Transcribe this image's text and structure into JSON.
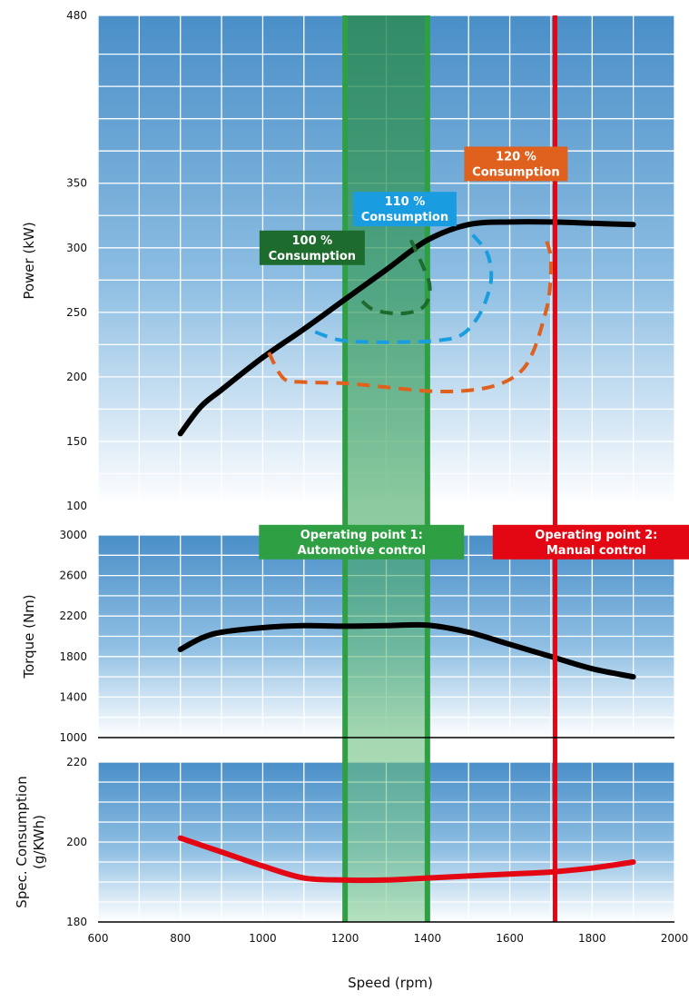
{
  "chart_data": {
    "type": "line",
    "x_axis": {
      "label": "Speed (rpm)",
      "range": [
        600,
        2000
      ],
      "ticks": [
        600,
        800,
        1000,
        1200,
        1400,
        1600,
        1800,
        2000
      ],
      "grid_step": 100
    },
    "panels": [
      {
        "id": "power",
        "ylabel": "Power (kW)",
        "ylim": [
          100,
          480
        ],
        "yticks": [
          100,
          150,
          200,
          250,
          300,
          350,
          480
        ],
        "grid_values": [
          100,
          125,
          150,
          175,
          200,
          225,
          250,
          275,
          300,
          325,
          350,
          375,
          400,
          425,
          450,
          480
        ],
        "series": [
          {
            "role": "power-curve",
            "style": "solid",
            "color": "#000000",
            "x": [
              800,
              850,
              900,
              1000,
              1100,
              1200,
              1300,
              1400,
              1500,
              1600,
              1700,
              1800,
              1900
            ],
            "y": [
              156,
              177,
              190,
              215,
              237,
              260,
              283,
              306,
              318,
              320,
              320,
              319,
              318
            ]
          },
          {
            "role": "consumption-contour-100",
            "style": "dashed",
            "color": "#1e6b2e",
            "closed": false,
            "x": [
              1360,
              1390,
              1405,
              1402,
              1380,
              1330,
              1270,
              1240
            ],
            "y": [
              306,
              285,
              272,
              260,
              252,
              249,
              252,
              259
            ]
          },
          {
            "role": "consumption-contour-110",
            "style": "dashed",
            "color": "#1a9de0",
            "closed": false,
            "x": [
              1510,
              1545,
              1555,
              1545,
              1520,
              1480,
              1420,
              1350,
              1250,
              1180,
              1110
            ],
            "y": [
              310,
              296,
              278,
              262,
              245,
              232,
              228,
              227,
              227,
              229,
              237
            ]
          },
          {
            "role": "consumption-contour-120",
            "style": "dashed",
            "color": "#e0601e",
            "closed": false,
            "x": [
              1690,
              1700,
              1695,
              1680,
              1660,
              1635,
              1600,
              1550,
              1480,
              1400,
              1300,
              1200,
              1100,
              1050,
              1010
            ],
            "y": [
              305,
              290,
              262,
              242,
              222,
              207,
              198,
              192,
              189,
              189,
              192,
              195,
              196,
              199,
              222
            ]
          }
        ]
      },
      {
        "id": "torque",
        "ylabel": "Torque (Nm)",
        "ylim": [
          1000,
          3000
        ],
        "yticks": [
          1000,
          1400,
          1800,
          2200,
          2600,
          3000
        ],
        "grid_values": [
          1000,
          1200,
          1400,
          1600,
          1800,
          2000,
          2200,
          2400,
          2600,
          2800,
          3000
        ],
        "series": [
          {
            "role": "torque-curve",
            "style": "solid",
            "color": "#000000",
            "x": [
              800,
              850,
              900,
              1000,
              1100,
              1200,
              1300,
              1400,
              1500,
              1600,
              1700,
              1800,
              1900
            ],
            "y": [
              1870,
              1980,
              2040,
              2085,
              2105,
              2100,
              2105,
              2110,
              2040,
              1920,
              1800,
              1680,
              1600
            ]
          }
        ]
      },
      {
        "id": "consumption",
        "ylabel_lines": [
          "Spec. Consumption",
          "(g/KWh)"
        ],
        "ylim": [
          180,
          220
        ],
        "yticks": [
          180,
          200,
          220
        ],
        "grid_values": [
          180,
          185,
          190,
          195,
          200,
          205,
          210,
          215,
          220
        ],
        "series": [
          {
            "role": "specific-consumption-curve",
            "style": "solid",
            "color": "#e30613",
            "x": [
              800,
              900,
              1000,
              1100,
              1200,
              1300,
              1400,
              1500,
              1600,
              1700,
              1800,
              1900
            ],
            "y": [
              201,
              197.5,
              194,
              191,
              190.5,
              190.5,
              191,
              191.5,
              192,
              192.5,
              193.5,
              195
            ]
          }
        ]
      }
    ],
    "bands": [
      {
        "id": "op1-band",
        "x_from": 1200,
        "x_to": 1400,
        "color": "#2ea043"
      }
    ],
    "markers": [
      {
        "id": "op2-line",
        "x": 1710,
        "color": "#e30613"
      }
    ],
    "annotations": [
      {
        "id": "label-100",
        "panel": "power",
        "lines": [
          "100 %",
          "Consumption"
        ],
        "bg": "#1e6b2e",
        "cx": 1120,
        "cy": 300
      },
      {
        "id": "label-110",
        "panel": "power",
        "lines": [
          "110 %",
          "Consumption"
        ],
        "bg": "#1a9de0",
        "cx": 1345,
        "cy": 330
      },
      {
        "id": "label-120",
        "panel": "power",
        "lines": [
          "120 %",
          "Consumption"
        ],
        "bg": "#e0601e",
        "cx": 1615,
        "cy": 365
      },
      {
        "id": "label-op1",
        "panel": "torque",
        "lines": [
          "Operating point 1:",
          "Automotive control"
        ],
        "bg": "#2ea043",
        "cx": 1240,
        "cy": 2930
      },
      {
        "id": "label-op2",
        "panel": "torque",
        "lines": [
          "Operating point 2:",
          "Manual control"
        ],
        "bg": "#e30613",
        "cx": 1810,
        "cy": 2930
      }
    ],
    "colors": {
      "panel_top": "#4a8fc8",
      "panel_bottom": "#ffffff",
      "grid": "#ffffff"
    }
  }
}
